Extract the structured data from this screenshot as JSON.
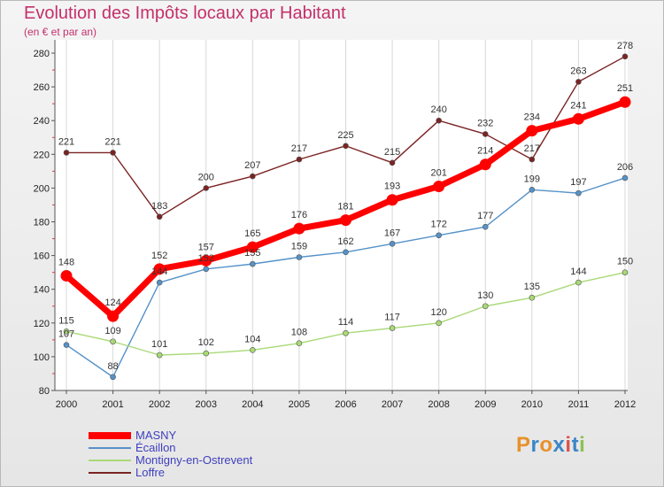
{
  "chart_data": {
    "type": "line",
    "title": "Evolution des Impôts locaux par Habitant",
    "subtitle": "(en € et par an)",
    "xlabel": "",
    "ylabel": "",
    "categories": [
      "2000",
      "2001",
      "2002",
      "2003",
      "2004",
      "2005",
      "2006",
      "2007",
      "2008",
      "2009",
      "2010",
      "2011",
      "2012"
    ],
    "ylim": [
      80,
      280
    ],
    "yticks": [
      80,
      100,
      120,
      140,
      160,
      180,
      200,
      220,
      240,
      260,
      280
    ],
    "grid": "vertical",
    "legend_position": "bottom-left",
    "series": [
      {
        "name": "MASNY",
        "color": "#ff0000",
        "emphasis": true,
        "values": [
          148,
          124,
          152,
          157,
          165,
          176,
          181,
          193,
          201,
          214,
          234,
          241,
          251
        ],
        "labels": [
          "148",
          "124",
          "152",
          "157",
          "165",
          "176",
          "181",
          "193",
          "201",
          "214",
          "234",
          "241",
          "251"
        ]
      },
      {
        "name": "Écaillon",
        "color": "#5592c8",
        "emphasis": false,
        "values": [
          107,
          88,
          144,
          152,
          155,
          159,
          162,
          167,
          172,
          177,
          199,
          197,
          206
        ],
        "labels": [
          "107",
          "88",
          "144",
          "152",
          "155",
          "159",
          "162",
          "167",
          "172",
          "177",
          "199",
          "197",
          "206"
        ]
      },
      {
        "name": "Montigny-en-Ostrevent",
        "color": "#a9d977",
        "emphasis": false,
        "values": [
          115,
          109,
          101,
          102,
          104,
          108,
          114,
          117,
          120,
          130,
          135,
          144,
          150
        ],
        "labels": [
          "115",
          "109",
          "101",
          "102",
          "104",
          "108",
          "114",
          "117",
          "120",
          "130",
          "135",
          "144",
          "150"
        ]
      },
      {
        "name": "Loffre",
        "color": "#7b2323",
        "emphasis": false,
        "values": [
          221,
          221,
          183,
          200,
          207,
          217,
          225,
          215,
          240,
          232,
          217,
          263,
          278
        ],
        "labels": [
          "221",
          "221",
          "183",
          "200",
          "207",
          "217",
          "225",
          "215",
          "240",
          "232",
          "217",
          "263",
          "278"
        ]
      }
    ]
  },
  "logo": {
    "text": "Proxiti",
    "letter_colors": [
      "#e8912b",
      "#3b86c6",
      "#e8912b",
      "#3b86c6",
      "#d9534f",
      "#3b86c6",
      "#8cc152"
    ]
  }
}
